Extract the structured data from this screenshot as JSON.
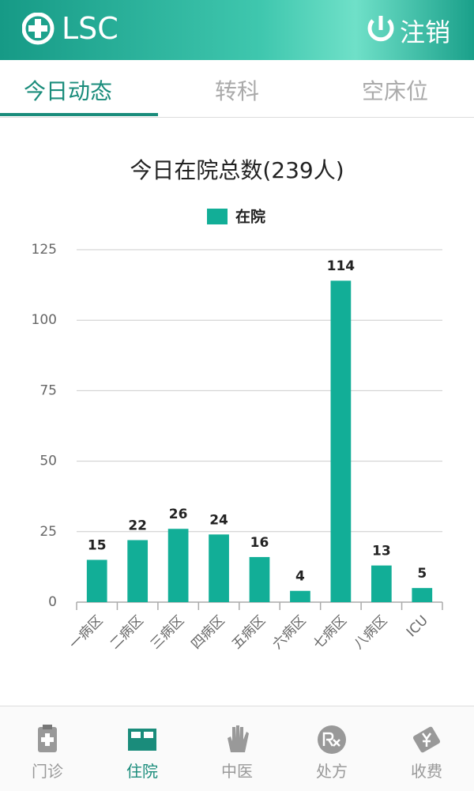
{
  "header": {
    "title": "LSC",
    "logout": "注销"
  },
  "tabs": [
    "今日动态",
    "转科",
    "空床位"
  ],
  "chart_data": {
    "type": "bar",
    "title": "今日在院总数(239人)",
    "categories": [
      "一病区",
      "二病区",
      "三病区",
      "四病区",
      "五病区",
      "六病区",
      "七病区",
      "八病区",
      "ICU"
    ],
    "series": [
      {
        "name": "在院",
        "color": "#12ae97",
        "values": [
          15,
          22,
          26,
          24,
          16,
          4,
          114,
          13,
          5
        ]
      }
    ],
    "ylim": [
      0,
      125
    ],
    "yticks": [
      0,
      25,
      50,
      75,
      100,
      125
    ],
    "grid": true
  },
  "nav": [
    "门诊",
    "住院",
    "中医",
    "处方",
    "收费"
  ]
}
